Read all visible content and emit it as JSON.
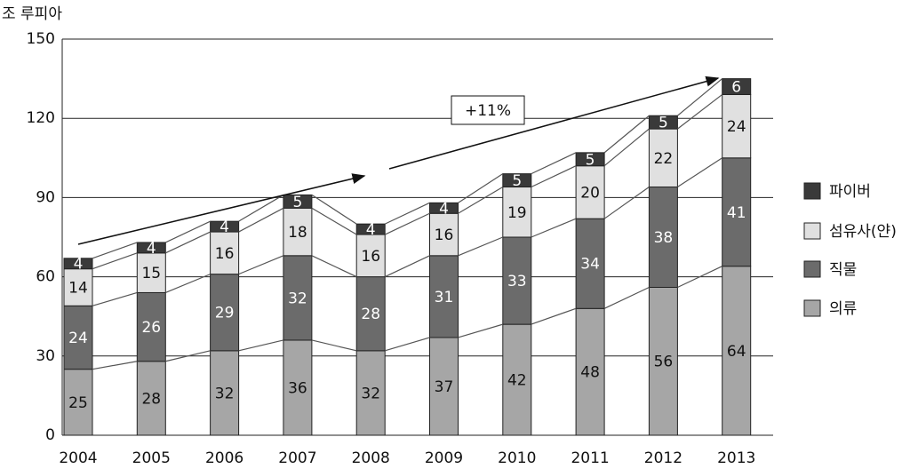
{
  "chart_data": {
    "type": "stacked-bar",
    "y_label": "조 루피아",
    "annotation": "+11%",
    "categories": [
      "2004",
      "2005",
      "2006",
      "2007",
      "2008",
      "2009",
      "2010",
      "2011",
      "2012",
      "2013"
    ],
    "series": [
      {
        "name": "의류",
        "color": "#a6a6a6",
        "values": [
          25,
          28,
          32,
          36,
          32,
          37,
          42,
          48,
          56,
          64
        ]
      },
      {
        "name": "직물",
        "color": "#6b6b6b",
        "values": [
          24,
          26,
          29,
          32,
          28,
          31,
          33,
          34,
          38,
          41
        ]
      },
      {
        "name": "섬유사(얀)",
        "color": "#e0e0e0",
        "values": [
          14,
          15,
          16,
          18,
          16,
          16,
          19,
          20,
          22,
          24
        ]
      },
      {
        "name": "파이버",
        "color": "#3a3a3a",
        "values": [
          4,
          4,
          4,
          5,
          4,
          4,
          5,
          5,
          5,
          6
        ]
      }
    ],
    "ylim": [
      0,
      150
    ],
    "yticks": [
      0,
      30,
      60,
      90,
      120,
      150
    ],
    "grid": true
  }
}
